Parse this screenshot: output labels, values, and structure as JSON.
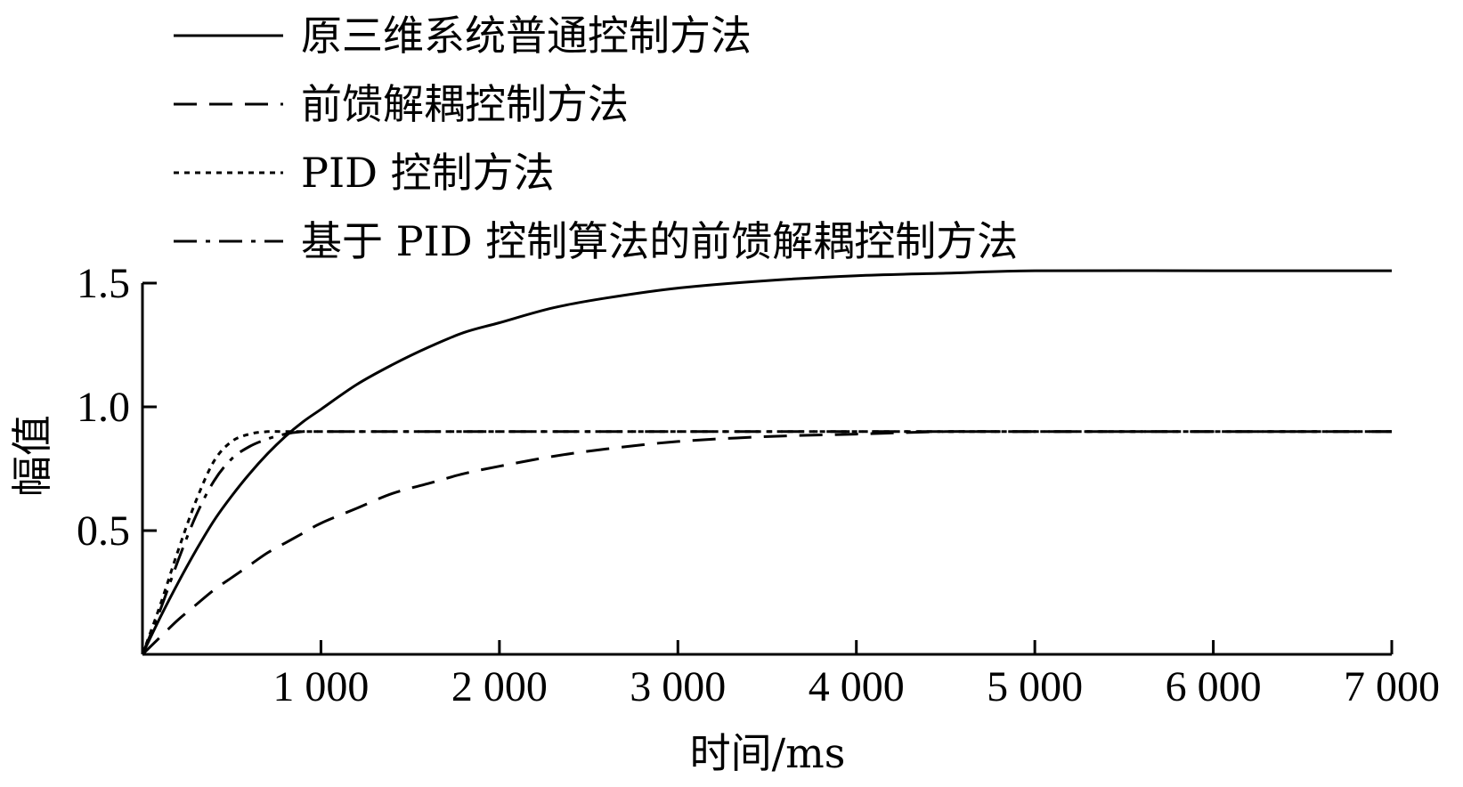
{
  "chart_data": {
    "type": "line",
    "title": "",
    "xlabel": "时间/ms",
    "ylabel": "幅值",
    "xlim": [
      0,
      7000
    ],
    "ylim": [
      0,
      1.5
    ],
    "xticks": [
      1000,
      2000,
      3000,
      4000,
      5000,
      6000,
      7000
    ],
    "xtick_labels": [
      "1 000",
      "2 000",
      "3 000",
      "4 000",
      "5 000",
      "6 000",
      "7 000"
    ],
    "yticks": [
      0.5,
      1.0,
      1.5
    ],
    "ytick_labels": [
      "0.5",
      "1.0",
      "1.5"
    ],
    "grid": false,
    "legend_position": "top-left",
    "series": [
      {
        "name": "原三维系统普通控制方法",
        "style": "solid",
        "x": [
          0,
          100,
          200,
          300,
          400,
          500,
          600,
          700,
          800,
          900,
          1000,
          1200,
          1400,
          1600,
          1800,
          2000,
          2300,
          2600,
          3000,
          3500,
          4000,
          4500,
          5000,
          6000,
          7000
        ],
        "y": [
          0.0,
          0.15,
          0.29,
          0.42,
          0.54,
          0.64,
          0.73,
          0.81,
          0.88,
          0.94,
          0.99,
          1.09,
          1.17,
          1.24,
          1.3,
          1.34,
          1.4,
          1.44,
          1.48,
          1.51,
          1.53,
          1.54,
          1.55,
          1.55,
          1.55
        ]
      },
      {
        "name": "前馈解耦控制方法",
        "style": "dashed",
        "x": [
          0,
          100,
          200,
          300,
          400,
          500,
          600,
          700,
          800,
          900,
          1000,
          1200,
          1400,
          1600,
          1800,
          2000,
          2300,
          2600,
          3000,
          3500,
          4000,
          4500,
          5000,
          6000,
          7000
        ],
        "y": [
          0.0,
          0.07,
          0.14,
          0.2,
          0.26,
          0.31,
          0.36,
          0.41,
          0.45,
          0.49,
          0.53,
          0.59,
          0.65,
          0.69,
          0.73,
          0.76,
          0.8,
          0.83,
          0.86,
          0.88,
          0.89,
          0.9,
          0.9,
          0.9,
          0.9
        ]
      },
      {
        "name": "PID 控制方法",
        "style": "dotted",
        "x": [
          0,
          100,
          200,
          300,
          400,
          500,
          600,
          700,
          800,
          1000,
          1500,
          2000,
          3000,
          4000,
          5000,
          6000,
          7000
        ],
        "y": [
          0.0,
          0.2,
          0.42,
          0.62,
          0.78,
          0.86,
          0.89,
          0.9,
          0.9,
          0.9,
          0.9,
          0.9,
          0.9,
          0.9,
          0.9,
          0.9,
          0.9
        ]
      },
      {
        "name": "基于 PID 控制算法的前馈解耦控制方法",
        "style": "dashdot",
        "x": [
          0,
          100,
          200,
          300,
          400,
          500,
          600,
          700,
          800,
          900,
          1000,
          1500,
          2000,
          3000,
          4000,
          5000,
          6000,
          7000
        ],
        "y": [
          0.0,
          0.18,
          0.38,
          0.56,
          0.7,
          0.79,
          0.84,
          0.87,
          0.89,
          0.9,
          0.9,
          0.9,
          0.9,
          0.9,
          0.9,
          0.9,
          0.9,
          0.9
        ]
      }
    ]
  }
}
